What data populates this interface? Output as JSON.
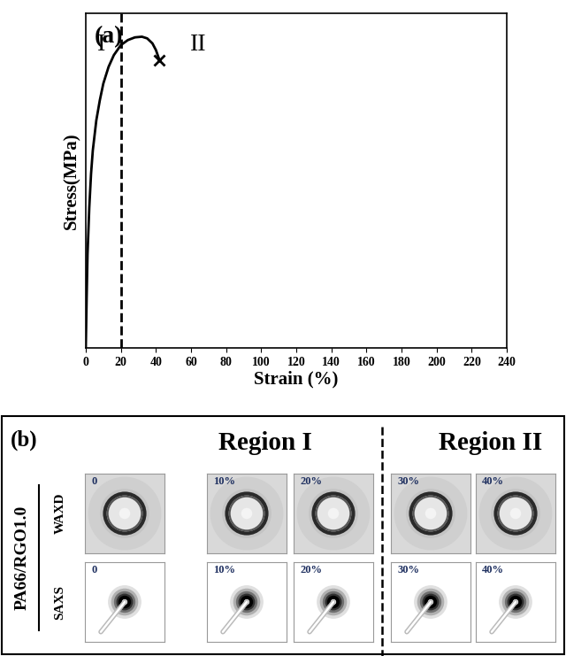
{
  "chart_data": {
    "type": "line",
    "panel_label": "(a)",
    "region_labels": [
      "I",
      "II"
    ],
    "region_boundary": 20,
    "x_label": "Strain (%)",
    "y_label": "Stress(MPa)",
    "x": [
      0,
      0.5,
      1,
      2,
      3,
      4,
      6,
      8,
      10,
      13,
      16,
      20,
      24,
      28,
      32,
      35,
      38,
      40,
      42
    ],
    "series": [
      {
        "values": [
          0,
          15,
          28,
          42,
          52,
          59,
          68,
          74,
          79,
          84,
          87.5,
          90.5,
          92,
          92.8,
          93,
          92.5,
          91,
          89,
          86
        ],
        "color": "#000000",
        "line_style": "solid"
      }
    ],
    "break_point": {
      "x": 42,
      "y": 86,
      "marker": "x"
    },
    "xlim": [
      0,
      240
    ],
    "xticks": [
      0,
      20,
      40,
      60,
      80,
      100,
      120,
      140,
      160,
      180,
      200,
      220,
      240
    ],
    "ylim": [
      0,
      100
    ],
    "yticks": [],
    "tick_labels": "x"
  },
  "panel_b": {
    "panel_label": "(b)",
    "sample": "PA66/RGO1.0",
    "rows": [
      "WAXD",
      "SAXS"
    ],
    "regions": [
      {
        "label": "Region I",
        "frames": [
          "0",
          "10%",
          "20%"
        ]
      },
      {
        "label": "Region II",
        "frames": [
          "30%",
          "40%"
        ]
      }
    ]
  }
}
